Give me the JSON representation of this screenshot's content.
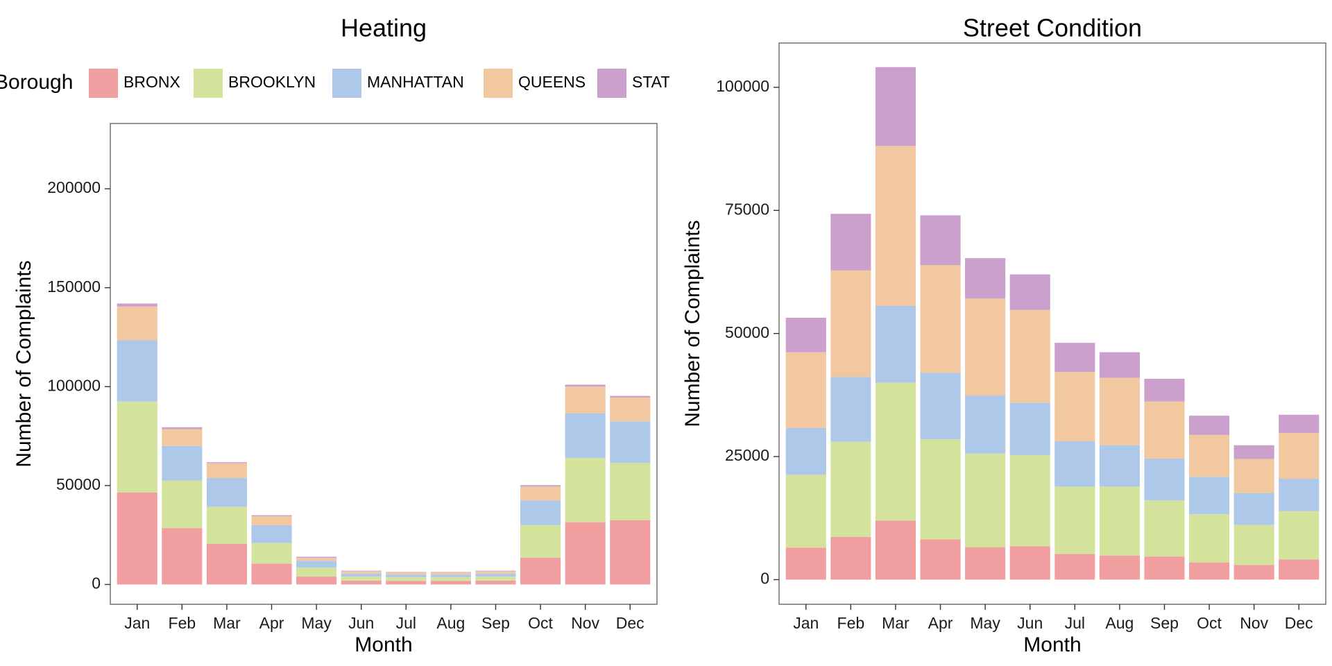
{
  "legend": {
    "title": "Borough",
    "placement": "top",
    "entries": [
      {
        "label": "BRONX",
        "color": "#F09EA0"
      },
      {
        "label": "BROOKLYN",
        "color": "#D3E39C"
      },
      {
        "label": "MANHATTAN",
        "color": "#ADC8E8"
      },
      {
        "label": "QUEENS",
        "color": "#F1C8A0"
      },
      {
        "label": "STATEN ISLAND",
        "color": "#CBA0CC"
      }
    ]
  },
  "chart_data": [
    {
      "type": "bar",
      "stacked": true,
      "title": "Heating",
      "xlabel": "Month",
      "ylabel": "Number of Complaints",
      "categories": [
        "Jan",
        "Feb",
        "Mar",
        "Apr",
        "May",
        "Jun",
        "Jul",
        "Aug",
        "Sep",
        "Oct",
        "Nov",
        "Dec"
      ],
      "ylim": [
        -10000,
        233000
      ],
      "yticks": [
        0,
        50000,
        100000,
        150000,
        200000
      ],
      "ytick_labels": [
        "0",
        "50000",
        "100000",
        "150000",
        "200000"
      ],
      "grid": false,
      "series": [
        {
          "name": "BRONX",
          "values": [
            46500,
            28500,
            20500,
            10500,
            4000,
            2000,
            1800,
            1800,
            2000,
            13500,
            31500,
            32500
          ]
        },
        {
          "name": "BROOKLYN",
          "values": [
            46000,
            24000,
            18800,
            10500,
            4500,
            2000,
            1800,
            1800,
            2000,
            16500,
            32500,
            29000
          ]
        },
        {
          "name": "MANHATTAN",
          "values": [
            31000,
            17500,
            14500,
            9000,
            3500,
            1500,
            1400,
            1400,
            1500,
            12500,
            22500,
            21000
          ]
        },
        {
          "name": "QUEENS",
          "values": [
            17000,
            8500,
            7500,
            4500,
            1500,
            1200,
            1000,
            1000,
            1200,
            7000,
            13500,
            12000
          ]
        },
        {
          "name": "STATEN ISLAND",
          "values": [
            1500,
            1000,
            500,
            500,
            500,
            300,
            300,
            300,
            300,
            700,
            1000,
            800
          ]
        }
      ]
    },
    {
      "type": "bar",
      "stacked": true,
      "title": "Street Condition",
      "xlabel": "Month",
      "ylabel": "Number of Complaints",
      "categories": [
        "Jan",
        "Feb",
        "Mar",
        "Apr",
        "May",
        "Jun",
        "Jul",
        "Aug",
        "Sep",
        "Oct",
        "Nov",
        "Dec"
      ],
      "ylim": [
        -5000,
        109000
      ],
      "yticks": [
        0,
        25000,
        50000,
        75000,
        100000
      ],
      "ytick_labels": [
        "0",
        "25000",
        "50000",
        "75000",
        "100000"
      ],
      "grid": false,
      "series": [
        {
          "name": "BRONX",
          "values": [
            6500,
            8700,
            12000,
            8200,
            6600,
            6800,
            5200,
            4900,
            4700,
            3500,
            3000,
            4100
          ]
        },
        {
          "name": "BROOKLYN",
          "values": [
            14800,
            19300,
            28000,
            20300,
            19000,
            18500,
            13700,
            14000,
            11400,
            9800,
            8100,
            9800
          ]
        },
        {
          "name": "MANHATTAN",
          "values": [
            9500,
            13200,
            15600,
            13500,
            11800,
            10600,
            9200,
            8400,
            8500,
            7600,
            6500,
            6600
          ]
        },
        {
          "name": "QUEENS",
          "values": [
            15400,
            21600,
            32500,
            21900,
            19700,
            18900,
            14100,
            13700,
            11600,
            8500,
            6900,
            9300
          ]
        },
        {
          "name": "STATEN ISLAND",
          "values": [
            7000,
            11500,
            16000,
            10100,
            8200,
            7200,
            5900,
            5200,
            4600,
            3900,
            2800,
            3700
          ]
        }
      ]
    }
  ]
}
